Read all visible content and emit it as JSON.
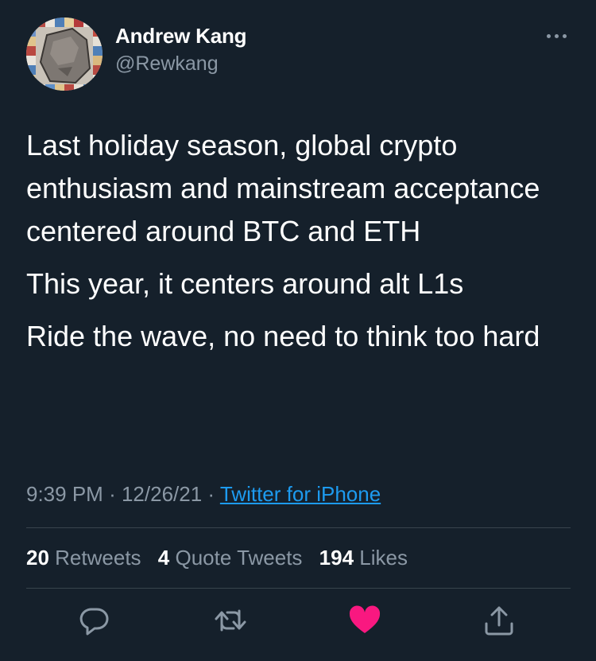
{
  "tweet": {
    "author_name": "Andrew Kang",
    "author_handle": "@Rewkang",
    "paragraphs": [
      "Last holiday season, global crypto enthusiasm and mainstream acceptance centered around BTC and ETH",
      "This year, it centers around alt L1s",
      "Ride the wave, no need to think too hard"
    ],
    "time": "9:39 PM",
    "date": "12/26/21",
    "separator": "·",
    "source": "Twitter for iPhone"
  },
  "stats": {
    "retweets_count": "20",
    "retweets_label": "Retweets",
    "quotes_count": "4",
    "quotes_label": "Quote Tweets",
    "likes_count": "194",
    "likes_label": "Likes"
  },
  "icons": {
    "more": "more-icon",
    "reply": "reply-icon",
    "retweet": "retweet-icon",
    "like": "heart-icon",
    "share": "share-icon"
  },
  "colors": {
    "background": "#15202b",
    "secondary_text": "#8b98a5",
    "link": "#1d9bf0",
    "like": "#f91880"
  }
}
